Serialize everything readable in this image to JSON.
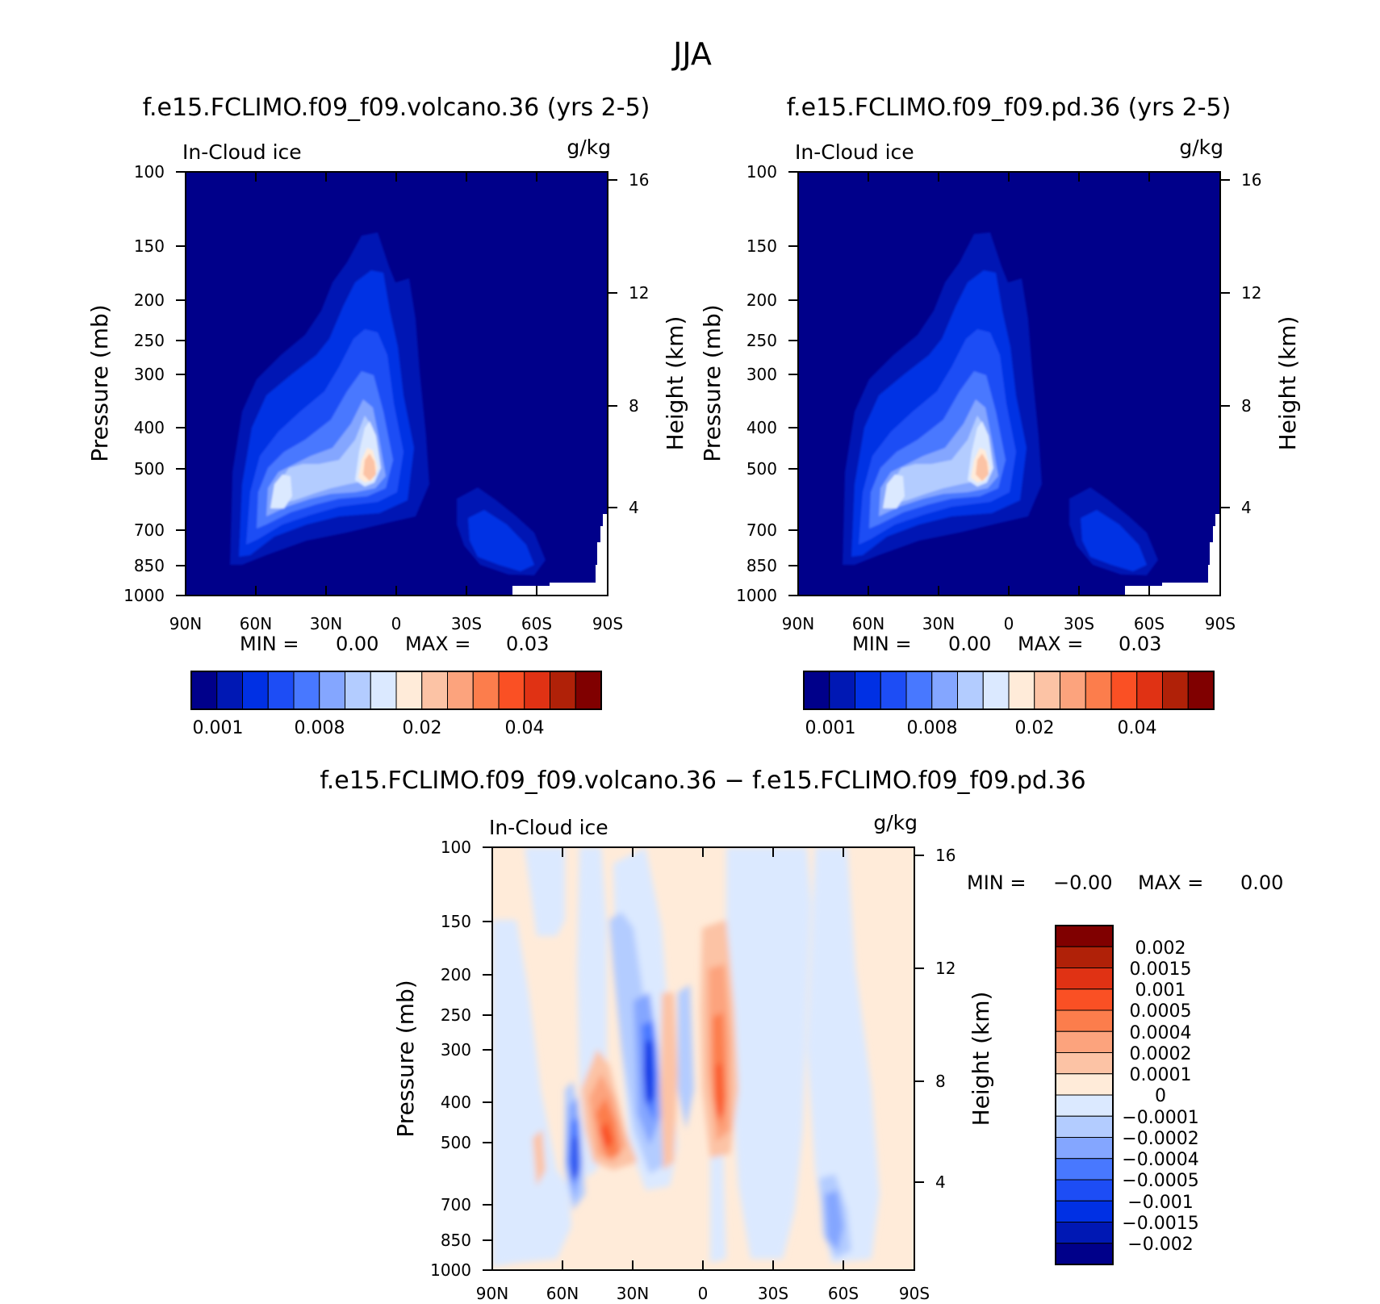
{
  "figure_title": "JJA",
  "chart_data": [
    {
      "type": "contour",
      "title": "f.e15.FCLIMO.f09_f09.volcano.36 (yrs 2-5)",
      "left_label": "In-Cloud ice",
      "right_label": "g/kg",
      "ylabel": "Pressure (mb)",
      "ylabel_right": "Height (km)",
      "x_ticks": [
        "90N",
        "60N",
        "30N",
        "0",
        "30S",
        "60S",
        "90S"
      ],
      "y_ticks": [
        "100",
        "150",
        "200",
        "250",
        "300",
        "400",
        "500",
        "700",
        "850",
        "1000"
      ],
      "height_ticks": [
        "16",
        "12",
        "8",
        "4"
      ],
      "min_text": "MIN =",
      "min_value": "0.00",
      "max_text": "MAX =",
      "max_value": "0.03",
      "colorbar": {
        "colors": [
          "#00008a",
          "#0018b4",
          "#0030e4",
          "#1d4df5",
          "#4878ff",
          "#84a6ff",
          "#b3ccff",
          "#dbe9ff",
          "#ffebd9",
          "#fcc3a5",
          "#fca37d",
          "#fc7d4c",
          "#fa5024",
          "#e03214",
          "#b02108",
          "#800000"
        ],
        "tick_labels": [
          "0.001",
          "0.008",
          "0.02",
          "0.04"
        ]
      }
    },
    {
      "type": "contour",
      "title": "f.e15.FCLIMO.f09_f09.pd.36 (yrs 2-5)",
      "left_label": "In-Cloud ice",
      "right_label": "g/kg",
      "ylabel": "Pressure (mb)",
      "ylabel_right": "Height (km)",
      "x_ticks": [
        "90N",
        "60N",
        "30N",
        "0",
        "30S",
        "60S",
        "90S"
      ],
      "y_ticks": [
        "100",
        "150",
        "200",
        "250",
        "300",
        "400",
        "500",
        "700",
        "850",
        "1000"
      ],
      "height_ticks": [
        "16",
        "12",
        "8",
        "4"
      ],
      "min_text": "MIN =",
      "min_value": "0.00",
      "max_text": "MAX =",
      "max_value": "0.03",
      "colorbar": {
        "colors": [
          "#00008a",
          "#0018b4",
          "#0030e4",
          "#1d4df5",
          "#4878ff",
          "#84a6ff",
          "#b3ccff",
          "#dbe9ff",
          "#ffebd9",
          "#fcc3a5",
          "#fca37d",
          "#fc7d4c",
          "#fa5024",
          "#e03214",
          "#b02108",
          "#800000"
        ],
        "tick_labels": [
          "0.001",
          "0.008",
          "0.02",
          "0.04"
        ]
      }
    },
    {
      "type": "contour",
      "title": "f.e15.FCLIMO.f09_f09.volcano.36 − f.e15.FCLIMO.f09_f09.pd.36",
      "left_label": "In-Cloud ice",
      "right_label": "g/kg",
      "ylabel": "Pressure (mb)",
      "ylabel_right": "Height (km)",
      "x_ticks": [
        "90N",
        "60N",
        "30N",
        "0",
        "30S",
        "60S",
        "90S"
      ],
      "y_ticks": [
        "100",
        "150",
        "200",
        "250",
        "300",
        "400",
        "500",
        "700",
        "850",
        "1000"
      ],
      "height_ticks": [
        "16",
        "12",
        "8",
        "4"
      ],
      "min_text": "MIN =",
      "min_value": "−0.00",
      "max_text": "MAX =",
      "max_value": "0.00",
      "colorbar": {
        "colors": [
          "#800000",
          "#b02108",
          "#e03214",
          "#fa5024",
          "#fc7d4c",
          "#fca37d",
          "#fcc3a5",
          "#ffebd9",
          "#dbe9ff",
          "#b3ccff",
          "#84a6ff",
          "#4878ff",
          "#1d4df5",
          "#0030e4",
          "#0018b4",
          "#00008a"
        ],
        "tick_labels": [
          "0.002",
          "0.0015",
          "0.001",
          "0.0005",
          "0.0004",
          "0.0002",
          "0.0001",
          "0",
          "−0.0001",
          "−0.0002",
          "−0.0004",
          "−0.0005",
          "−0.001",
          "−0.0015",
          "−0.002"
        ]
      }
    }
  ]
}
